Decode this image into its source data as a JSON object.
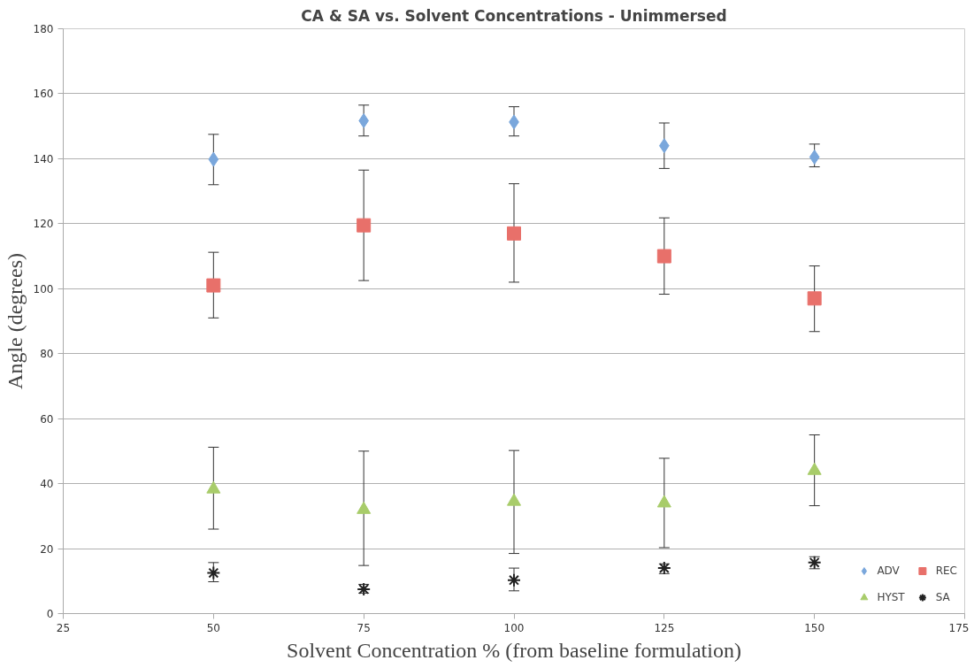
{
  "chart_data": {
    "type": "scatter",
    "title": "CA & SA vs. Solvent Concentrations - Unimmersed",
    "xlabel": "Solvent Concentration % (from baseline formulation)",
    "ylabel": "Angle (degrees)",
    "x": [
      50,
      75,
      100,
      125,
      150
    ],
    "xlim": [
      25,
      175
    ],
    "xticks": [
      25,
      50,
      75,
      100,
      125,
      150,
      175
    ],
    "ylim": [
      0,
      180
    ],
    "yticks": [
      0,
      20,
      40,
      60,
      80,
      100,
      120,
      140,
      160,
      180
    ],
    "grid": "y",
    "legend": "bottom right",
    "series": [
      {
        "name": "ADV",
        "color": "#7aa7dc",
        "marker": "diamond",
        "values": [
          139.8,
          151.7,
          151.3,
          144,
          140.5
        ],
        "errors": [
          [
            132,
            147.5
          ],
          [
            147,
            156.5
          ],
          [
            147,
            156
          ],
          [
            137,
            151
          ],
          [
            137.5,
            144.5
          ]
        ]
      },
      {
        "name": "REC",
        "color": "#e8706a",
        "marker": "square",
        "values": [
          101,
          119.5,
          117,
          110,
          97
        ],
        "errors": [
          [
            91,
            111.2
          ],
          [
            102.5,
            136.5
          ],
          [
            102,
            132.3
          ],
          [
            98.3,
            121.8
          ],
          [
            86.8,
            107
          ]
        ]
      },
      {
        "name": "HYST",
        "color": "#a8cc6a",
        "marker": "triangle",
        "values": [
          38.3,
          32,
          34.5,
          34,
          44
        ],
        "errors": [
          [
            26,
            51.2
          ],
          [
            14.8,
            50
          ],
          [
            18.5,
            50.2
          ],
          [
            20.3,
            47.8
          ],
          [
            33.2,
            55
          ]
        ]
      },
      {
        "name": "SA",
        "color": "#222222",
        "marker": "cross",
        "values": [
          12.5,
          7.5,
          10.3,
          14,
          15.7
        ],
        "errors": [
          [
            9.8,
            15.7
          ],
          [
            6.3,
            9
          ],
          [
            7,
            14
          ],
          [
            12.3,
            15.3
          ],
          [
            13.8,
            17.5
          ]
        ]
      }
    ]
  }
}
